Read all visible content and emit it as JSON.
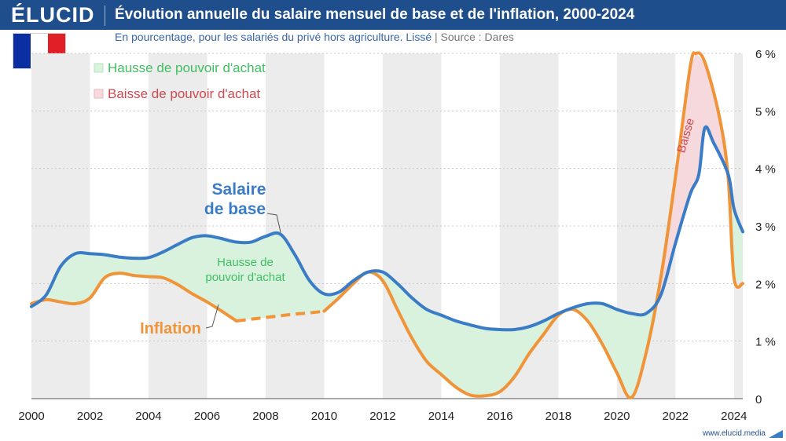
{
  "header": {
    "logo": "ÉLUCID",
    "title": "Évolution annuelle du salaire mensuel de base et de l'inflation, 2000-2024",
    "subtitle": "En pourcentage, pour les salariés du privé hors agriculture. Lissé",
    "source_sep": "|",
    "source": "Source : Dares"
  },
  "footer": {
    "url": "www.elucid.media"
  },
  "colors": {
    "header_bg": "#1f4e8c",
    "salaire": "#3a7cc6",
    "inflation": "#f0943a",
    "hausse_fill": "#d9f2de",
    "baisse_fill": "#f6d9dc",
    "hausse_text": "#3fbf61",
    "baisse_text": "#d0494f",
    "flag_blue": "#0b2fa3",
    "flag_white": "#ffffff",
    "flag_red": "#e01f26"
  },
  "chart_data": {
    "type": "line",
    "title": "Évolution annuelle du salaire mensuel de base et de l'inflation, 2000-2024",
    "xlim": [
      2000,
      2024.3
    ],
    "ylim": [
      0,
      6
    ],
    "x_ticks": [
      "2000",
      "2002",
      "2004",
      "2006",
      "2008",
      "2010",
      "2012",
      "2014",
      "2016",
      "2018",
      "2020",
      "2022",
      "2024"
    ],
    "y_ticks": [
      "0",
      "1 %",
      "2 %",
      "3 %",
      "4 %",
      "5 %",
      "6 %"
    ],
    "series": [
      {
        "name": "Salaire de base",
        "label_lines": [
          "Salaire",
          "de base"
        ],
        "points": [
          [
            2000,
            1.6
          ],
          [
            2000.5,
            1.8
          ],
          [
            2001,
            2.3
          ],
          [
            2001.5,
            2.52
          ],
          [
            2002,
            2.52
          ],
          [
            2002.5,
            2.5
          ],
          [
            2003,
            2.46
          ],
          [
            2003.5,
            2.44
          ],
          [
            2004,
            2.45
          ],
          [
            2004.5,
            2.55
          ],
          [
            2005,
            2.68
          ],
          [
            2005.5,
            2.8
          ],
          [
            2006,
            2.83
          ],
          [
            2006.5,
            2.78
          ],
          [
            2007,
            2.72
          ],
          [
            2007.5,
            2.72
          ],
          [
            2008,
            2.82
          ],
          [
            2008.5,
            2.86
          ],
          [
            2009,
            2.5
          ],
          [
            2009.5,
            2.05
          ],
          [
            2010,
            1.82
          ],
          [
            2010.5,
            1.85
          ],
          [
            2011,
            2.05
          ],
          [
            2011.5,
            2.2
          ],
          [
            2012,
            2.2
          ],
          [
            2012.5,
            2.0
          ],
          [
            2013,
            1.75
          ],
          [
            2013.5,
            1.55
          ],
          [
            2014,
            1.45
          ],
          [
            2014.5,
            1.35
          ],
          [
            2015,
            1.28
          ],
          [
            2015.5,
            1.22
          ],
          [
            2016,
            1.2
          ],
          [
            2016.5,
            1.2
          ],
          [
            2017,
            1.25
          ],
          [
            2017.5,
            1.35
          ],
          [
            2018,
            1.48
          ],
          [
            2018.5,
            1.58
          ],
          [
            2019,
            1.65
          ],
          [
            2019.5,
            1.65
          ],
          [
            2020,
            1.55
          ],
          [
            2020.5,
            1.48
          ],
          [
            2021,
            1.48
          ],
          [
            2021.5,
            1.8
          ],
          [
            2022,
            2.7
          ],
          [
            2022.5,
            3.55
          ],
          [
            2022.8,
            3.9
          ],
          [
            2023,
            4.7
          ],
          [
            2023.3,
            4.45
          ],
          [
            2023.8,
            3.9
          ],
          [
            2024,
            3.3
          ],
          [
            2024.3,
            2.9
          ]
        ]
      },
      {
        "name": "Inflation",
        "label_lines": [
          "Inflation"
        ],
        "dashed_range": [
          2007,
          2010
        ],
        "points": [
          [
            2000,
            1.65
          ],
          [
            2000.5,
            1.72
          ],
          [
            2001,
            1.68
          ],
          [
            2001.5,
            1.65
          ],
          [
            2002,
            1.75
          ],
          [
            2002.5,
            2.1
          ],
          [
            2003,
            2.18
          ],
          [
            2003.5,
            2.14
          ],
          [
            2004,
            2.12
          ],
          [
            2004.5,
            2.1
          ],
          [
            2005,
            1.98
          ],
          [
            2005.5,
            1.82
          ],
          [
            2006,
            1.68
          ],
          [
            2006.5,
            1.52
          ],
          [
            2007,
            1.35
          ],
          [
            2007.5,
            1.38
          ],
          [
            2008,
            1.41
          ],
          [
            2008.5,
            1.44
          ],
          [
            2009,
            1.47
          ],
          [
            2009.5,
            1.49
          ],
          [
            2010,
            1.52
          ],
          [
            2010.5,
            1.75
          ],
          [
            2011,
            2.0
          ],
          [
            2011.5,
            2.2
          ],
          [
            2012,
            2.05
          ],
          [
            2012.5,
            1.55
          ],
          [
            2013,
            1.05
          ],
          [
            2013.5,
            0.65
          ],
          [
            2014,
            0.42
          ],
          [
            2014.5,
            0.2
          ],
          [
            2015,
            0.06
          ],
          [
            2015.5,
            0.05
          ],
          [
            2016,
            0.12
          ],
          [
            2016.5,
            0.38
          ],
          [
            2017,
            0.78
          ],
          [
            2017.5,
            1.12
          ],
          [
            2018,
            1.45
          ],
          [
            2018.5,
            1.55
          ],
          [
            2019,
            1.35
          ],
          [
            2019.5,
            0.95
          ],
          [
            2020,
            0.45
          ],
          [
            2020.5,
            0.02
          ],
          [
            2021,
            0.8
          ],
          [
            2021.5,
            2.1
          ],
          [
            2022,
            3.85
          ],
          [
            2022.5,
            5.75
          ],
          [
            2022.7,
            6.0
          ],
          [
            2023,
            5.85
          ],
          [
            2023.5,
            4.9
          ],
          [
            2023.8,
            3.85
          ],
          [
            2024,
            2.1
          ],
          [
            2024.3,
            2.0
          ]
        ]
      }
    ],
    "legend": [
      {
        "label": "Hausse de pouvoir d'achat",
        "kind": "hausse"
      },
      {
        "label": "Baisse de pouvoir d'achat",
        "kind": "baisse"
      }
    ],
    "annotations": {
      "hausse_lines": [
        "Hausse de",
        "pouvoir d'achat"
      ],
      "baisse": "Baisse"
    }
  }
}
